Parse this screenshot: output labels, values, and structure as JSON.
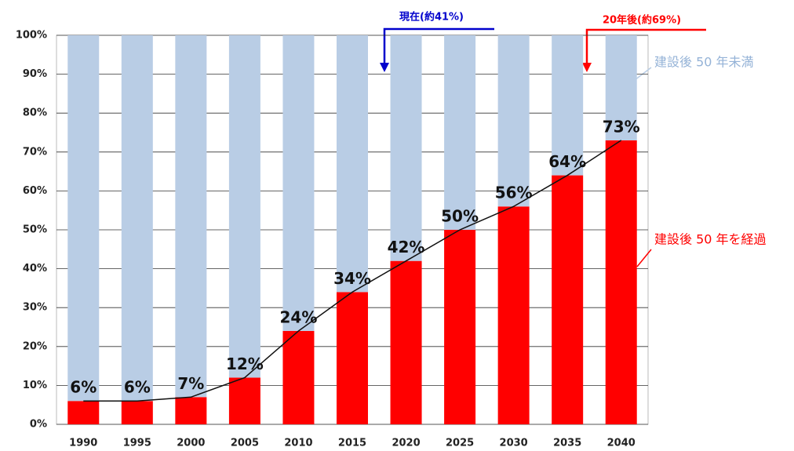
{
  "chart_data": {
    "type": "bar",
    "stacked": true,
    "categories": [
      "1990",
      "1995",
      "2000",
      "2005",
      "2010",
      "2015",
      "2020",
      "2025",
      "2030",
      "2035",
      "2040"
    ],
    "series": [
      {
        "name": "建設後 50 年を経過",
        "color": "#ff0000",
        "values": [
          6,
          6,
          7,
          12,
          24,
          34,
          42,
          50,
          56,
          64,
          73
        ],
        "value_labels": [
          "6%",
          "6%",
          "7%",
          "12%",
          "24%",
          "34%",
          "42%",
          "50%",
          "56%",
          "64%",
          "73%"
        ]
      },
      {
        "name": "建設後 50 年未満",
        "color": "#b9cde5",
        "values": [
          94,
          94,
          93,
          88,
          76,
          66,
          58,
          50,
          44,
          36,
          27
        ]
      }
    ],
    "ylim": [
      0,
      100
    ],
    "yticks": [
      {
        "value": 0,
        "label": "0%"
      },
      {
        "value": 10,
        "label": "10%"
      },
      {
        "value": 20,
        "label": "20%"
      },
      {
        "value": 30,
        "label": "30%"
      },
      {
        "value": 40,
        "label": "40%"
      },
      {
        "value": 50,
        "label": "50%"
      },
      {
        "value": 60,
        "label": "60%"
      },
      {
        "value": 70,
        "label": "70%"
      },
      {
        "value": 80,
        "label": "80%"
      },
      {
        "value": 90,
        "label": "90%"
      },
      {
        "value": 100,
        "label": "100%"
      }
    ],
    "grid": true,
    "annotations": [
      "現在(約41%)",
      "20年後(約69%)"
    ]
  }
}
